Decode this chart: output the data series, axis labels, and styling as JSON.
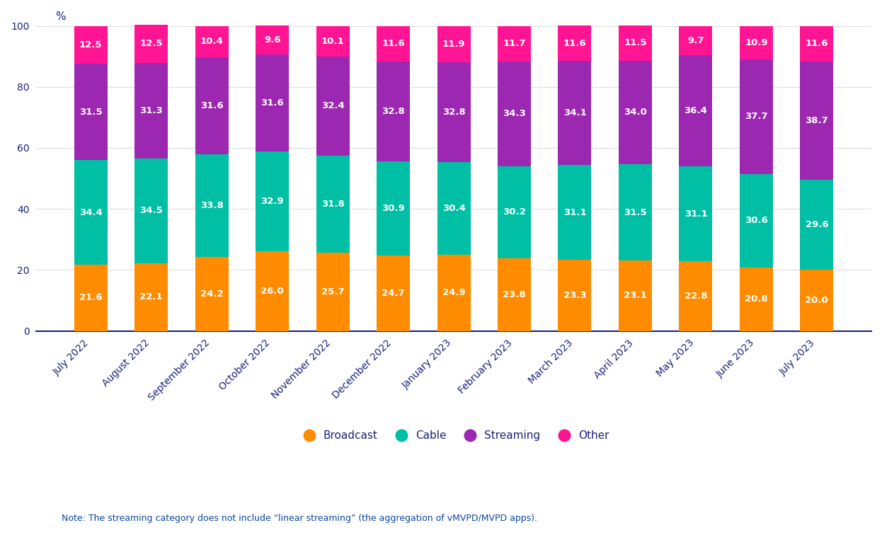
{
  "categories": [
    "July 2022",
    "August 2022",
    "September 2022",
    "October 2022",
    "November 2022",
    "December 2022",
    "January 2023",
    "February 2023",
    "March 2023",
    "April 2023",
    "May 2023",
    "June 2023",
    "July 2023"
  ],
  "broadcast": [
    21.6,
    22.1,
    24.2,
    26.0,
    25.7,
    24.7,
    24.9,
    23.8,
    23.3,
    23.1,
    22.8,
    20.8,
    20.0
  ],
  "cable": [
    34.4,
    34.5,
    33.8,
    32.9,
    31.8,
    30.9,
    30.4,
    30.2,
    31.1,
    31.5,
    31.1,
    30.6,
    29.6
  ],
  "streaming": [
    31.5,
    31.3,
    31.6,
    31.6,
    32.4,
    32.8,
    32.8,
    34.3,
    34.1,
    34.0,
    36.4,
    37.7,
    38.7
  ],
  "other": [
    12.5,
    12.5,
    10.4,
    9.6,
    10.1,
    11.6,
    11.9,
    11.7,
    11.6,
    11.5,
    9.7,
    10.9,
    11.6
  ],
  "broadcast_color": "#FF8C00",
  "cable_color": "#00BFA5",
  "streaming_color": "#9C27B0",
  "other_color": "#FF1493",
  "background_color": "#FFFFFF",
  "ylabel": "%",
  "ylim": [
    0,
    105
  ],
  "yticks": [
    0,
    20,
    40,
    60,
    80,
    100
  ],
  "note": "Note: The streaming category does not include “linear streaming” (the aggregation of vMVPD/MVPD apps).",
  "bar_width": 0.55,
  "label_fontsize": 9.5,
  "axis_label_fontsize": 11,
  "legend_fontsize": 11,
  "grid_color": "#DDDDDD",
  "tick_color": "#1A237E",
  "note_color": "#0D47A1"
}
